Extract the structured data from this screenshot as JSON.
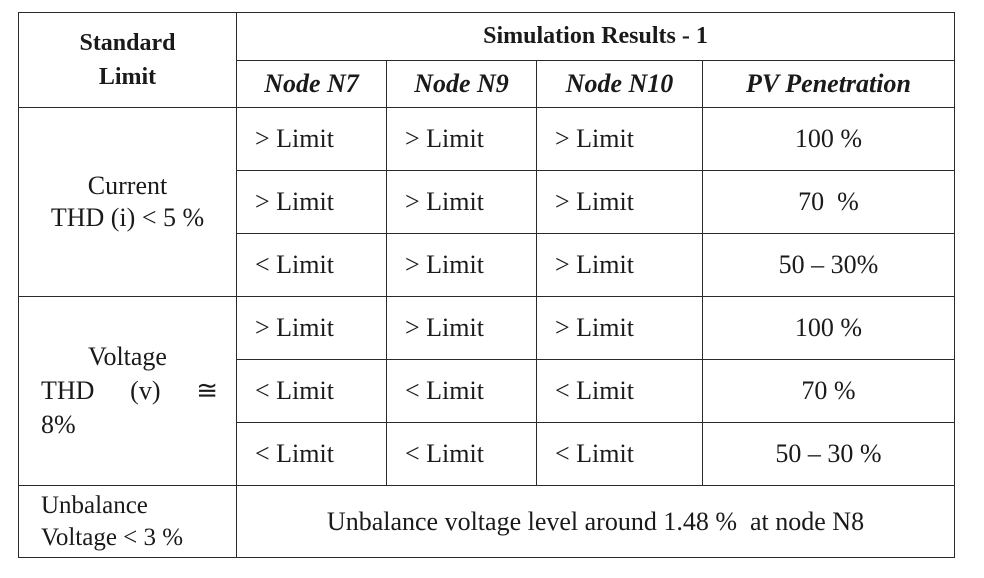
{
  "header": {
    "standard_limit": "Standard Limit",
    "standard_limit_line1": "Standard",
    "standard_limit_line2": "Limit",
    "simulation_results": "Simulation Results - 1",
    "columns": [
      "Node N7",
      "Node N9",
      "Node N10",
      "PV Penetration"
    ]
  },
  "groups": {
    "current": {
      "label_line1": "Current",
      "label_line2": "THD (i) < 5 %",
      "rows": [
        {
          "n7": "> Limit",
          "n9": "> Limit",
          "n10": "> Limit",
          "pv": "100 %"
        },
        {
          "n7": "> Limit",
          "n9": "> Limit",
          "n10": "> Limit",
          "pv": "70  %"
        },
        {
          "n7": "< Limit",
          "n9": "> Limit",
          "n10": "> Limit",
          "pv": "50 – 30%"
        }
      ]
    },
    "voltage": {
      "label_line1": "Voltage",
      "label_line2a": "THD",
      "label_line2b": "(v)",
      "label_line2c": "≅",
      "label_line3": "8%",
      "rows": [
        {
          "n7": "> Limit",
          "n9": "> Limit",
          "n10": "> Limit",
          "pv": "100 %"
        },
        {
          "n7": "< Limit",
          "n9": "< Limit",
          "n10": "< Limit",
          "pv": "70 %"
        },
        {
          "n7": "< Limit",
          "n9": "< Limit",
          "n10": "< Limit",
          "pv": "50 – 30 %"
        }
      ]
    },
    "unbalance": {
      "label_line1": "Unbalance",
      "label_line2": "Voltage < 3 %",
      "result": "Unbalance voltage level around 1.48 %  at node N8"
    }
  }
}
